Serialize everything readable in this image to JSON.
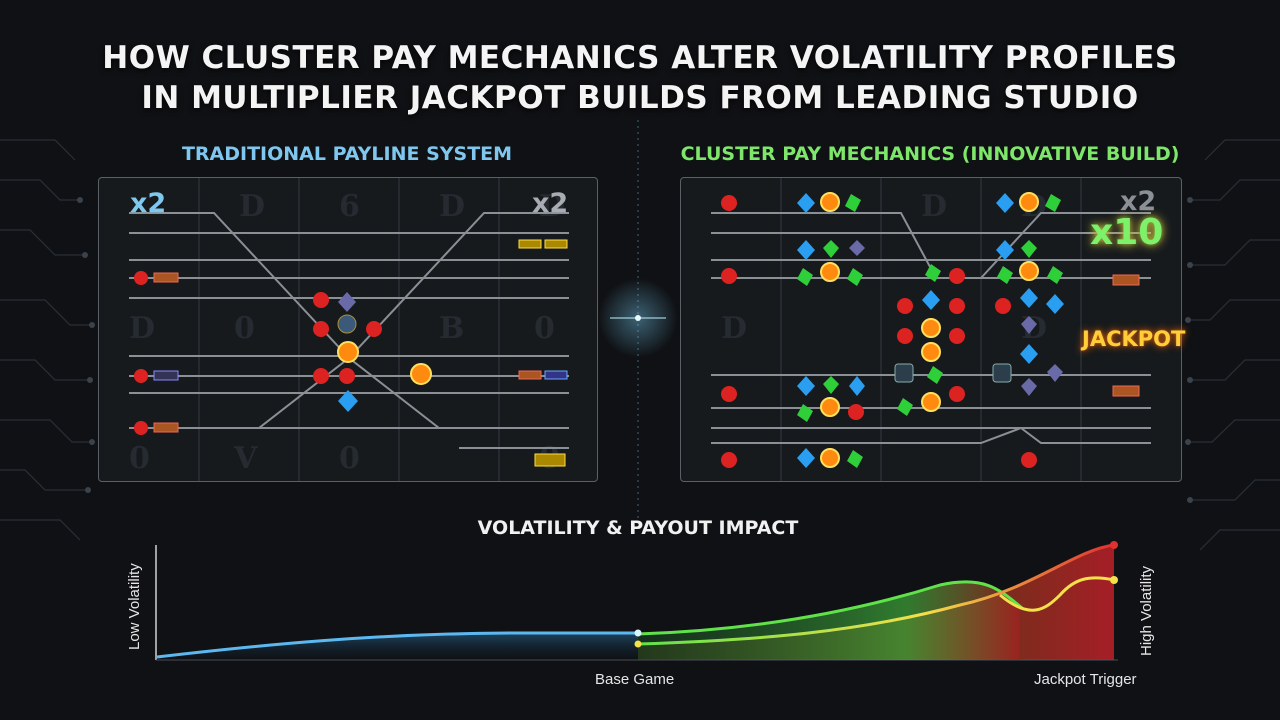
{
  "title_line1": "HOW CLUSTER PAY MECHANICS ALTER VOLATILITY PROFILES",
  "title_line2": "IN MULTIPLIER JACKPOT BUILDS FROM LEADING STUDIO",
  "left_panel": {
    "title": "TRADITIONAL PAYLINE SYSTEM",
    "multiplier_left": "x2",
    "multiplier_right": "x2"
  },
  "right_panel": {
    "title": "CLUSTER PAY MECHANICS (INNOVATIVE BUILD)",
    "multiplier_faded": "x2",
    "multiplier_big": "x10",
    "jackpot": "JACKPOT"
  },
  "impact": {
    "title": "VOLATILITY & PAYOUT IMPACT",
    "y_low": "Low Volatility",
    "y_high": "High Volatility",
    "x_start": "Base Game",
    "x_end": "Jackpot Trigger"
  },
  "colors": {
    "traditional": "#5db8f0",
    "cluster": "#5fe24a",
    "yellow": "#f3e04a",
    "red": "#e0303a"
  }
}
